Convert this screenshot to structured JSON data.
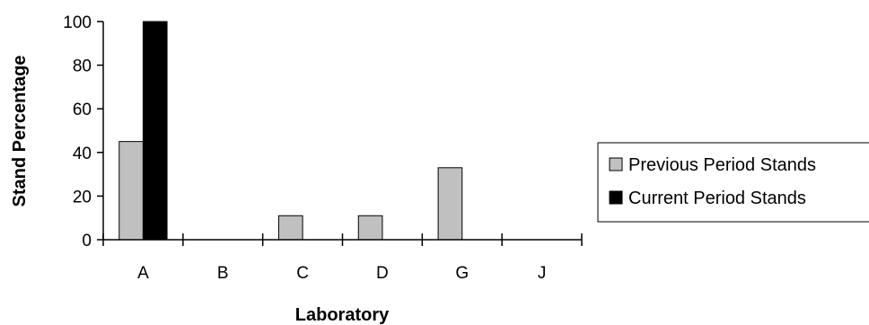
{
  "chart_data": {
    "type": "bar",
    "categories": [
      "A",
      "B",
      "C",
      "D",
      "G",
      "J"
    ],
    "series": [
      {
        "name": "Previous Period Stands",
        "values": [
          45,
          0,
          11,
          11,
          33,
          0
        ],
        "color": "#c0c0c0"
      },
      {
        "name": "Current Period Stands",
        "values": [
          100,
          0,
          0,
          0,
          0,
          0
        ],
        "color": "#000000"
      }
    ],
    "title": "",
    "xlabel": "Laboratory",
    "ylabel": "Stand Percentage",
    "ylim": [
      0,
      100
    ],
    "yticks": [
      0,
      20,
      40,
      60,
      80,
      100
    ],
    "grid": false,
    "legend": "right"
  }
}
